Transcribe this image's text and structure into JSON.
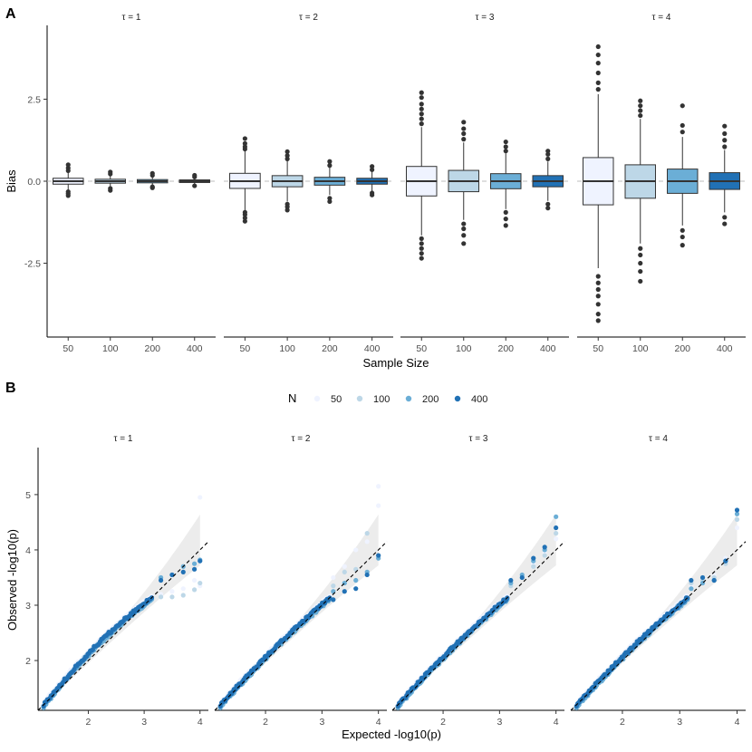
{
  "panels": {
    "a_label": "A",
    "b_label": "B"
  },
  "chart_data": [
    {
      "type": "box",
      "panel": "A",
      "ylabel": "Bias",
      "xlabel": "Sample Size",
      "ylim": [
        -4.75,
        4.75
      ],
      "yticks": [
        -2.5,
        0.0,
        2.5
      ],
      "ytick_labels": [
        "-2.5",
        "0.0",
        "2.5"
      ],
      "reference_line": 0,
      "categories": [
        "50",
        "100",
        "200",
        "400"
      ],
      "fill_colors": [
        "#EFF3FF",
        "#BDD7E7",
        "#6BAED6",
        "#2171B5"
      ],
      "facets": [
        {
          "label": "τ = 1",
          "boxes": [
            {
              "q1": -0.09,
              "median": 0.0,
              "q3": 0.09,
              "whisker_low": -0.27,
              "whisker_high": 0.27,
              "outliers": [
                -0.44,
                -0.38,
                -0.32,
                0.32,
                0.4,
                0.5
              ]
            },
            {
              "q1": -0.06,
              "median": 0.0,
              "q3": 0.06,
              "whisker_low": -0.18,
              "whisker_high": 0.18,
              "outliers": [
                -0.28,
                -0.22,
                0.22,
                0.28
              ]
            },
            {
              "q1": -0.05,
              "median": 0.0,
              "q3": 0.05,
              "whisker_low": -0.14,
              "whisker_high": 0.14,
              "outliers": [
                -0.2,
                -0.17,
                0.18,
                0.24
              ]
            },
            {
              "q1": -0.04,
              "median": 0.0,
              "q3": 0.04,
              "whisker_low": -0.1,
              "whisker_high": 0.1,
              "outliers": [
                -0.14,
                0.13,
                0.18
              ]
            }
          ]
        },
        {
          "label": "τ = 2",
          "boxes": [
            {
              "q1": -0.22,
              "median": 0.0,
              "q3": 0.24,
              "whisker_low": -0.9,
              "whisker_high": 0.92,
              "outliers": [
                -1.22,
                -1.12,
                -1.02,
                -0.95,
                0.98,
                1.05,
                1.15,
                1.3
              ]
            },
            {
              "q1": -0.17,
              "median": 0.0,
              "q3": 0.17,
              "whisker_low": -0.62,
              "whisker_high": 0.62,
              "outliers": [
                -0.88,
                -0.78,
                -0.7,
                0.68,
                0.78,
                0.9
              ]
            },
            {
              "q1": -0.12,
              "median": 0.0,
              "q3": 0.12,
              "whisker_low": -0.42,
              "whisker_high": 0.42,
              "outliers": [
                -0.62,
                -0.52,
                0.48,
                0.6
              ]
            },
            {
              "q1": -0.09,
              "median": 0.0,
              "q3": 0.09,
              "whisker_low": -0.3,
              "whisker_high": 0.3,
              "outliers": [
                -0.42,
                -0.36,
                0.35,
                0.45
              ]
            }
          ]
        },
        {
          "label": "τ = 3",
          "boxes": [
            {
              "q1": -0.45,
              "median": 0.0,
              "q3": 0.45,
              "whisker_low": -1.65,
              "whisker_high": 1.65,
              "outliers": [
                -2.35,
                -2.2,
                -2.05,
                -1.9,
                -1.75,
                1.75,
                1.9,
                2.05,
                2.2,
                2.35,
                2.55,
                2.7
              ]
            },
            {
              "q1": -0.32,
              "median": 0.0,
              "q3": 0.33,
              "whisker_low": -1.18,
              "whisker_high": 1.18,
              "outliers": [
                -1.9,
                -1.65,
                -1.45,
                -1.3,
                1.28,
                1.45,
                1.6,
                1.8
              ]
            },
            {
              "q1": -0.23,
              "median": 0.0,
              "q3": 0.23,
              "whisker_low": -0.85,
              "whisker_high": 0.85,
              "outliers": [
                -1.35,
                -1.15,
                -0.95,
                0.92,
                1.05,
                1.2
              ]
            },
            {
              "q1": -0.17,
              "median": 0.0,
              "q3": 0.17,
              "whisker_low": -0.6,
              "whisker_high": 0.6,
              "outliers": [
                -0.82,
                -0.7,
                0.68,
                0.82,
                0.92
              ]
            }
          ]
        },
        {
          "label": "τ = 4",
          "boxes": [
            {
              "q1": -0.72,
              "median": 0.0,
              "q3": 0.72,
              "whisker_low": -2.65,
              "whisker_high": 2.65,
              "outliers": [
                -4.25,
                -4.05,
                -3.75,
                -3.5,
                -3.3,
                -3.1,
                -2.9,
                2.8,
                3.0,
                3.3,
                3.6,
                3.85,
                4.1
              ]
            },
            {
              "q1": -0.52,
              "median": 0.0,
              "q3": 0.5,
              "whisker_low": -1.9,
              "whisker_high": 1.9,
              "outliers": [
                -3.05,
                -2.75,
                -2.5,
                -2.25,
                -2.05,
                2.0,
                2.15,
                2.3,
                2.45
              ]
            },
            {
              "q1": -0.37,
              "median": 0.0,
              "q3": 0.37,
              "whisker_low": -1.35,
              "whisker_high": 1.35,
              "outliers": [
                -1.95,
                -1.7,
                -1.5,
                1.5,
                1.7,
                2.3
              ]
            },
            {
              "q1": -0.25,
              "median": 0.0,
              "q3": 0.26,
              "whisker_low": -0.95,
              "whisker_high": 0.95,
              "outliers": [
                -1.3,
                -1.1,
                1.05,
                1.25,
                1.45,
                1.68
              ]
            }
          ]
        }
      ]
    },
    {
      "type": "scatter",
      "panel": "B",
      "xlabel": "Expected -log10(p)",
      "ylabel": "Observed -log10(p)",
      "xlim": [
        1.1,
        4.15
      ],
      "ylim": [
        1.1,
        5.85
      ],
      "xticks": [
        2,
        3,
        4
      ],
      "yticks": [
        2,
        3,
        4,
        5
      ],
      "reference_line": "y = x",
      "confidence_band": true,
      "legend": {
        "title": "N",
        "labels": [
          "50",
          "100",
          "200",
          "400"
        ],
        "colors": [
          "#EFF3FF",
          "#BDD7E7",
          "#6BAED6",
          "#2171B5"
        ]
      },
      "facets": [
        {
          "label": "τ = 1",
          "series": [
            {
              "name": "50",
              "tail": [
                [
                  3.3,
                  3.2
                ],
                [
                  3.5,
                  3.25
                ],
                [
                  3.7,
                  3.3
                ],
                [
                  3.9,
                  3.45
                ],
                [
                  4.0,
                  3.35
                ],
                [
                  4.0,
                  4.95
                ]
              ]
            },
            {
              "name": "100",
              "tail": [
                [
                  3.3,
                  3.15
                ],
                [
                  3.5,
                  3.15
                ],
                [
                  3.7,
                  3.18
                ],
                [
                  3.9,
                  3.28
                ],
                [
                  4.0,
                  3.4
                ]
              ]
            },
            {
              "name": "200",
              "tail": [
                [
                  3.3,
                  3.5
                ],
                [
                  3.5,
                  3.55
                ],
                [
                  3.7,
                  3.7
                ],
                [
                  3.9,
                  3.75
                ],
                [
                  4.0,
                  3.82
                ]
              ]
            },
            {
              "name": "400",
              "tail": [
                [
                  3.3,
                  3.45
                ],
                [
                  3.5,
                  3.55
                ],
                [
                  3.7,
                  3.6
                ],
                [
                  3.9,
                  3.65
                ],
                [
                  4.0,
                  3.8
                ]
              ]
            }
          ]
        },
        {
          "label": "τ = 2",
          "series": [
            {
              "name": "50",
              "tail": [
                [
                  3.2,
                  3.5
                ],
                [
                  3.4,
                  3.7
                ],
                [
                  3.6,
                  4.0
                ],
                [
                  3.8,
                  4.15
                ],
                [
                  4.0,
                  4.8
                ],
                [
                  4.0,
                  5.15
                ]
              ]
            },
            {
              "name": "100",
              "tail": [
                [
                  3.2,
                  3.35
                ],
                [
                  3.4,
                  3.6
                ],
                [
                  3.6,
                  3.65
                ],
                [
                  3.8,
                  4.3
                ],
                [
                  4.0,
                  3.9
                ]
              ]
            },
            {
              "name": "200",
              "tail": [
                [
                  3.2,
                  3.25
                ],
                [
                  3.4,
                  3.4
                ],
                [
                  3.6,
                  3.45
                ],
                [
                  3.8,
                  3.6
                ],
                [
                  4.0,
                  3.85
                ]
              ]
            },
            {
              "name": "400",
              "tail": [
                [
                  3.2,
                  3.1
                ],
                [
                  3.4,
                  3.25
                ],
                [
                  3.6,
                  3.3
                ],
                [
                  3.8,
                  3.55
                ],
                [
                  4.0,
                  3.9
                ]
              ]
            }
          ]
        },
        {
          "label": "τ = 3",
          "series": [
            {
              "name": "50",
              "tail": [
                [
                  3.2,
                  3.4
                ],
                [
                  3.4,
                  3.55
                ],
                [
                  3.6,
                  3.75
                ],
                [
                  3.8,
                  3.95
                ],
                [
                  4.0,
                  4.2
                ]
              ]
            },
            {
              "name": "100",
              "tail": [
                [
                  3.2,
                  3.35
                ],
                [
                  3.4,
                  3.5
                ],
                [
                  3.6,
                  3.7
                ],
                [
                  3.8,
                  3.9
                ],
                [
                  4.0,
                  4.3
                ]
              ]
            },
            {
              "name": "200",
              "tail": [
                [
                  3.2,
                  3.4
                ],
                [
                  3.4,
                  3.55
                ],
                [
                  3.6,
                  3.8
                ],
                [
                  3.8,
                  4.0
                ],
                [
                  4.0,
                  4.6
                ]
              ]
            },
            {
              "name": "400",
              "tail": [
                [
                  3.2,
                  3.45
                ],
                [
                  3.4,
                  3.5
                ],
                [
                  3.6,
                  3.85
                ],
                [
                  3.8,
                  4.05
                ],
                [
                  4.0,
                  4.4
                ]
              ]
            }
          ]
        },
        {
          "label": "τ = 4",
          "series": [
            {
              "name": "50",
              "tail": [
                [
                  3.2,
                  3.35
                ],
                [
                  3.4,
                  3.4
                ],
                [
                  3.6,
                  3.55
                ],
                [
                  3.8,
                  3.85
                ],
                [
                  4.0,
                  4.4
                ]
              ]
            },
            {
              "name": "100",
              "tail": [
                [
                  3.2,
                  3.4
                ],
                [
                  3.4,
                  3.45
                ],
                [
                  3.6,
                  3.5
                ],
                [
                  3.8,
                  3.75
                ],
                [
                  4.0,
                  4.55
                ]
              ]
            },
            {
              "name": "200",
              "tail": [
                [
                  3.2,
                  3.3
                ],
                [
                  3.4,
                  3.4
                ],
                [
                  3.6,
                  3.45
                ],
                [
                  3.8,
                  3.8
                ],
                [
                  4.0,
                  4.65
                ]
              ]
            },
            {
              "name": "400",
              "tail": [
                [
                  3.2,
                  3.45
                ],
                [
                  3.4,
                  3.5
                ],
                [
                  3.6,
                  3.45
                ],
                [
                  3.8,
                  3.8
                ],
                [
                  4.0,
                  4.72
                ]
              ]
            }
          ]
        }
      ]
    }
  ]
}
